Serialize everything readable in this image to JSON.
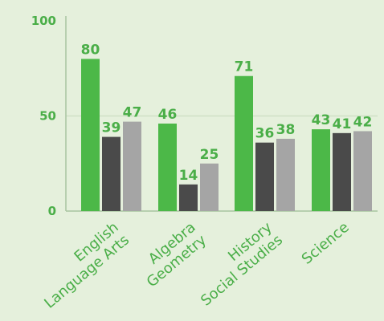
{
  "chart_data": {
    "type": "bar",
    "categories": [
      [
        "English",
        "Language Arts"
      ],
      [
        "Algebra",
        "Geometry"
      ],
      [
        "History",
        "Social Studies"
      ],
      [
        "Science"
      ]
    ],
    "series": [
      {
        "values": [
          80,
          46,
          71,
          43
        ],
        "color": "#4cb848"
      },
      {
        "values": [
          39,
          14,
          36,
          41
        ],
        "color": "#4a4a4a"
      },
      {
        "values": [
          47,
          25,
          38,
          42
        ],
        "color": "#a5a5a5"
      }
    ],
    "yticks": [
      0,
      50,
      100
    ],
    "ylim": [
      0,
      100
    ],
    "grid": false,
    "gridline_at": 50,
    "title": "",
    "xlabel": "",
    "ylabel": "",
    "colors": {
      "background": "#e5f0dc",
      "text": "#4aae48",
      "axis": "#a8c4a0",
      "gridline": "#cfe0c6"
    }
  }
}
